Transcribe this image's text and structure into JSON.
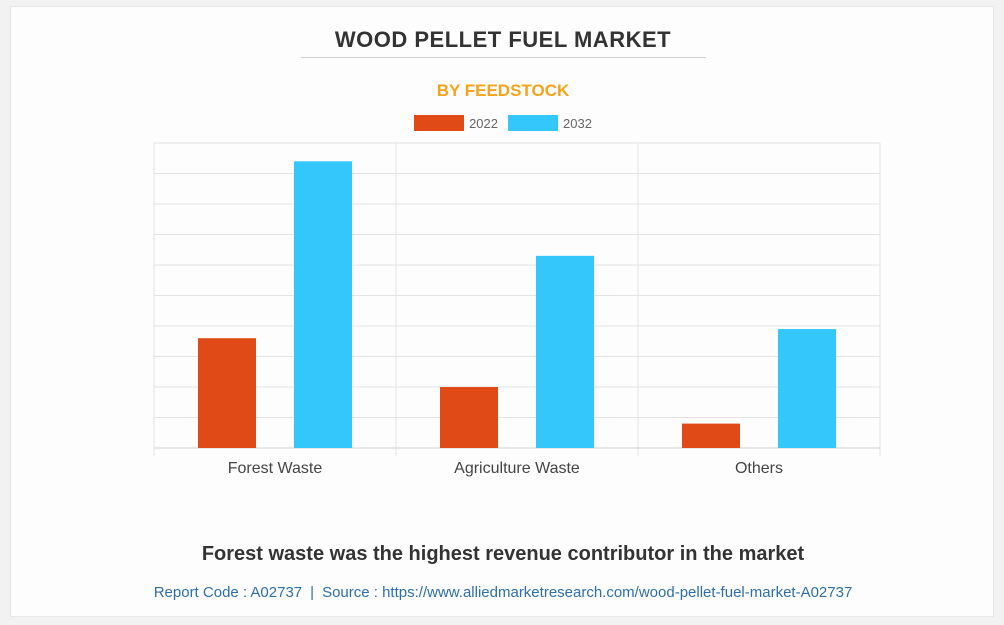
{
  "title": "WOOD PELLET FUEL MARKET",
  "subtitle": "BY FEEDSTOCK",
  "caption": "Forest waste was the highest revenue contributor in the market",
  "footer": {
    "report_code": "Report Code : A02737",
    "separator": "|",
    "source": "Source : https://www.alliedmarketresearch.com/wood-pellet-fuel-market-A02737"
  },
  "colors": {
    "series_2022": "#e04a16",
    "series_2032": "#33c7fb",
    "grid": "#e3e3e3",
    "title": "#333333",
    "subtitle": "#f5a31a",
    "footer": "#2e6fa7"
  },
  "chart_data": {
    "type": "bar",
    "categories": [
      "Forest Waste",
      "Agriculture Waste",
      "Others"
    ],
    "series": [
      {
        "name": "2022",
        "values": [
          3.6,
          2.0,
          0.8
        ]
      },
      {
        "name": "2032",
        "values": [
          9.4,
          6.3,
          3.9
        ]
      }
    ],
    "ylim": [
      0,
      10
    ],
    "grid": true,
    "legend": "top-center",
    "xlabel": "",
    "ylabel": ""
  }
}
